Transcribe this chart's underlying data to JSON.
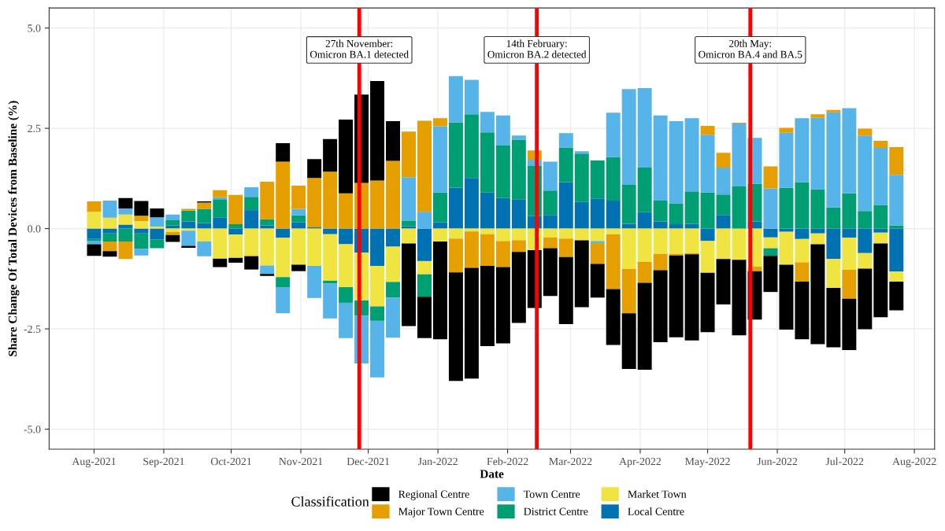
{
  "chart_data": {
    "type": "bar",
    "stacked": true,
    "xlabel": "Date",
    "ylabel": "Share Change Of Total Devices from Baseline (%)",
    "legend_title": "Classification",
    "legend": "bottom",
    "grid": true,
    "x": [
      "2021-08-01",
      "2021-08-08",
      "2021-08-15",
      "2021-08-22",
      "2021-08-29",
      "2021-09-05",
      "2021-09-12",
      "2021-09-19",
      "2021-09-26",
      "2021-10-03",
      "2021-10-10",
      "2021-10-17",
      "2021-10-24",
      "2021-10-31",
      "2021-11-07",
      "2021-11-14",
      "2021-11-21",
      "2021-11-28",
      "2021-12-05",
      "2021-12-12",
      "2021-12-19",
      "2021-12-26",
      "2022-01-02",
      "2022-01-09",
      "2022-01-16",
      "2022-01-23",
      "2022-01-30",
      "2022-02-06",
      "2022-02-13",
      "2022-02-20",
      "2022-02-27",
      "2022-03-06",
      "2022-03-13",
      "2022-03-20",
      "2022-03-27",
      "2022-04-03",
      "2022-04-10",
      "2022-04-17",
      "2022-04-24",
      "2022-05-01",
      "2022-05-08",
      "2022-05-15",
      "2022-05-22",
      "2022-05-29",
      "2022-06-05",
      "2022-06-12",
      "2022-06-19",
      "2022-06-26",
      "2022-07-03",
      "2022-07-10",
      "2022-07-17",
      "2022-07-24"
    ],
    "series": [
      {
        "name": "Local Centre",
        "color": "#0072b2",
        "values": [
          -0.26,
          -0.12,
          0.1,
          -0.12,
          -0.27,
          0.08,
          0.18,
          0.14,
          0.27,
          -0.15,
          0.46,
          0.08,
          -0.23,
          0.16,
          0.03,
          -0.14,
          -0.39,
          -0.6,
          -0.93,
          -0.45,
          0.06,
          -0.81,
          0.16,
          1.02,
          1.26,
          0.9,
          0.76,
          0.73,
          0.31,
          0.34,
          1.16,
          0.67,
          0.75,
          0.7,
          0.12,
          0.41,
          0.18,
          0.11,
          0.12,
          -0.31,
          0.34,
          0,
          0.18,
          -0.22,
          -0.08,
          -0.26,
          -0.12,
          -0.76,
          -0.23,
          -0.61,
          -0.1,
          -1.07
        ]
      },
      {
        "name": "Market Town",
        "color": "#f0e442",
        "values": [
          0.42,
          0.27,
          0.25,
          0.19,
          0.05,
          -0.08,
          -0.05,
          -0.32,
          -0.75,
          -0.58,
          -0.67,
          -0.92,
          -0.98,
          -0.9,
          -0.93,
          -1.16,
          -1.07,
          -1.19,
          -1.01,
          -0.88,
          -0.37,
          -0.33,
          -0.32,
          -0.25,
          -0.07,
          -0.14,
          -0.31,
          -0.29,
          -0.54,
          -0.22,
          -0.25,
          -0.29,
          -0.31,
          -0.14,
          -1.01,
          -0.83,
          -0.63,
          -0.63,
          -0.61,
          -0.79,
          -0.76,
          -0.78,
          -0.95,
          -0.27,
          -0.82,
          -0.58,
          -0.27,
          -0.72,
          -0.8,
          -0.39,
          -0.27,
          -0.25
        ]
      },
      {
        "name": "District Centre",
        "color": "#009e73",
        "values": [
          -0.04,
          -0.2,
          -0.32,
          -0.39,
          -0.22,
          0.13,
          0.27,
          0.35,
          0.46,
          0.11,
          0.33,
          0.15,
          -0.25,
          0.17,
          0,
          -0.07,
          -0.39,
          -0.38,
          -0.36,
          -0.39,
          0.14,
          -0.56,
          0.74,
          1.63,
          1.59,
          1.5,
          1.31,
          1.49,
          1.25,
          0.61,
          0.86,
          1.2,
          0.95,
          1.08,
          0.97,
          1.11,
          0.52,
          0.52,
          0.81,
          0.9,
          0.51,
          1.05,
          0.94,
          -0.19,
          1.02,
          1.16,
          0.98,
          0.53,
          0.88,
          0.44,
          0.59,
          0.08
        ]
      },
      {
        "name": "Town Centre",
        "color": "#56b4e9",
        "values": [
          -0.09,
          0.43,
          0.15,
          -0.16,
          0.23,
          0.14,
          -0.38,
          -0.37,
          0.05,
          0,
          0.24,
          -0.21,
          -0.65,
          0.16,
          -0.8,
          -0.87,
          -0.88,
          -1.19,
          -1.41,
          -1.0,
          1.08,
          0.42,
          1.65,
          1.15,
          0.86,
          0.51,
          0.75,
          0.1,
          0.16,
          0.72,
          0.36,
          0.06,
          -0.05,
          1.11,
          2.39,
          1.98,
          2.12,
          2.05,
          1.82,
          1.44,
          0.67,
          1.57,
          1.14,
          1.0,
          1.37,
          1.59,
          1.78,
          2.37,
          2.12,
          1.88,
          1.42,
          1.26
        ]
      },
      {
        "name": "Major Town Centre",
        "color": "#e69f00",
        "values": [
          0.26,
          -0.24,
          -0.44,
          0.13,
          0,
          -0.08,
          0.04,
          0.16,
          0.18,
          0.73,
          -0.02,
          0.94,
          1.67,
          0.58,
          1.23,
          1.42,
          0.88,
          1.14,
          1.2,
          1.69,
          1.14,
          2.27,
          0.2,
          -0.84,
          -0.91,
          -0.79,
          -0.65,
          -0.29,
          0.23,
          -0.27,
          -0.46,
          0,
          -0.52,
          -1.37,
          -1.1,
          -0.52,
          -0.41,
          -0.04,
          -0.03,
          0.22,
          0.37,
          0.02,
          -0.11,
          0.55,
          0.12,
          -0.48,
          0.09,
          0.06,
          -0.72,
          0.17,
          0.18,
          0.69
        ]
      },
      {
        "name": "Regional Centre",
        "color": "#000000",
        "values": [
          -0.29,
          -0.14,
          0.26,
          0.37,
          0.22,
          -0.17,
          -0.05,
          0.03,
          -0.21,
          -0.12,
          -0.33,
          -0.05,
          0.46,
          -0.16,
          0.47,
          0.81,
          1.84,
          2.2,
          2.48,
          0.99,
          -2.06,
          -1.03,
          -2.44,
          -2.71,
          -2.76,
          -2.0,
          -1.9,
          -1.77,
          -1.44,
          -1.19,
          -1.67,
          -1.67,
          -0.84,
          -1.39,
          -1.39,
          -2.17,
          -1.79,
          -2.04,
          -2.15,
          -1.48,
          -1.13,
          -1.88,
          -1.21,
          -0.9,
          -1.62,
          -1.44,
          -2.49,
          -1.48,
          -1.28,
          -1.51,
          -1.84,
          -0.72
        ]
      }
    ],
    "xlim": [
      "2021-07-12",
      "2022-08-10"
    ],
    "xticks": [
      {
        "value": "2021-08-01",
        "label": "Aug-2021"
      },
      {
        "value": "2021-09-01",
        "label": "Sep-2021"
      },
      {
        "value": "2021-10-01",
        "label": "Oct-2021"
      },
      {
        "value": "2021-11-01",
        "label": "Nov-2021"
      },
      {
        "value": "2021-12-01",
        "label": "Dec-2021"
      },
      {
        "value": "2022-01-01",
        "label": "Jan-2022"
      },
      {
        "value": "2022-02-01",
        "label": "Feb-2022"
      },
      {
        "value": "2022-03-01",
        "label": "Mar-2022"
      },
      {
        "value": "2022-04-01",
        "label": "Apr-2022"
      },
      {
        "value": "2022-05-01",
        "label": "May-2022"
      },
      {
        "value": "2022-06-01",
        "label": "Jun-2022"
      },
      {
        "value": "2022-07-01",
        "label": "Jul-2022"
      },
      {
        "value": "2022-08-01",
        "label": "Aug-2022"
      }
    ],
    "ylim": [
      -5.5,
      5.5
    ],
    "yticks": [
      {
        "value": -5,
        "label": "-5.0"
      },
      {
        "value": -2.5,
        "label": "-2.5"
      },
      {
        "value": 0,
        "label": "0.0"
      },
      {
        "value": 2.5,
        "label": "2.5"
      },
      {
        "value": 5,
        "label": "5.0"
      }
    ],
    "ref_lines": [
      {
        "axis": "x",
        "value": "2021-11-27",
        "label": "27th November:\nOmicron BA.1 detected",
        "color": "#ff0000"
      },
      {
        "axis": "x",
        "value": "2022-02-14",
        "label": "14th February:\nOmicron BA.2 detected",
        "color": "#ff0000"
      },
      {
        "axis": "x",
        "value": "2022-05-20",
        "label": "20th May:\nOmicron BA.4 and BA.5",
        "color": "#ff0000"
      }
    ]
  }
}
